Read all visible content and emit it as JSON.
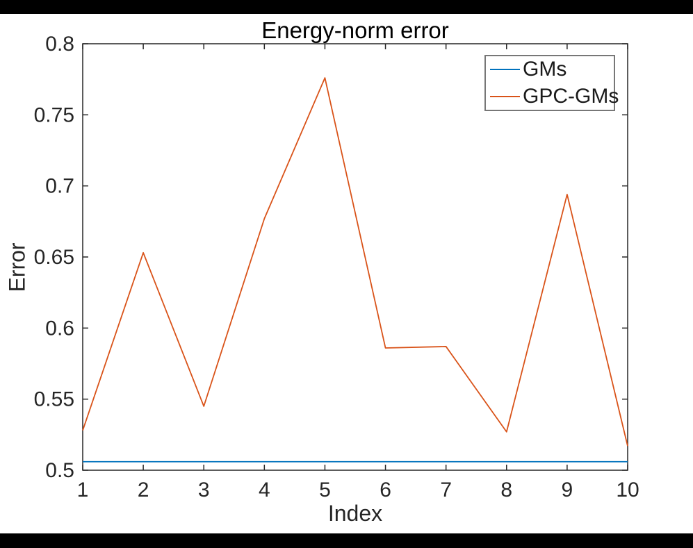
{
  "figure": {
    "background": "#ffffff",
    "letterbox_color": "#000000"
  },
  "chart_data": {
    "type": "line",
    "title": "Energy-norm error",
    "xlabel": "Index",
    "ylabel": "Error",
    "x": [
      1,
      2,
      3,
      4,
      5,
      6,
      7,
      8,
      9,
      10
    ],
    "series": [
      {
        "name": "GMs",
        "color": "#0072BD",
        "values": [
          0.506,
          0.506,
          0.506,
          0.506,
          0.506,
          0.506,
          0.506,
          0.506,
          0.506,
          0.506
        ]
      },
      {
        "name": "GPC-GMs",
        "color": "#D95319",
        "values": [
          0.528,
          0.653,
          0.545,
          0.677,
          0.776,
          0.586,
          0.587,
          0.527,
          0.694,
          0.517
        ]
      }
    ],
    "xlim": [
      1,
      10
    ],
    "ylim": [
      0.5,
      0.8
    ],
    "xticks": [
      1,
      2,
      3,
      4,
      5,
      6,
      7,
      8,
      9,
      10
    ],
    "xticklabels": [
      "1",
      "2",
      "3",
      "4",
      "5",
      "6",
      "7",
      "8",
      "9",
      "10"
    ],
    "yticks": [
      0.5,
      0.55,
      0.6,
      0.65,
      0.7,
      0.75,
      0.8
    ],
    "yticklabels": [
      "0.5",
      "0.55",
      "0.6",
      "0.65",
      "0.7",
      "0.75",
      "0.8"
    ],
    "grid": false,
    "legend_position": "top-right",
    "axis_color": "#262626",
    "legend_border_color": "#777777",
    "title_color": "#000000"
  }
}
